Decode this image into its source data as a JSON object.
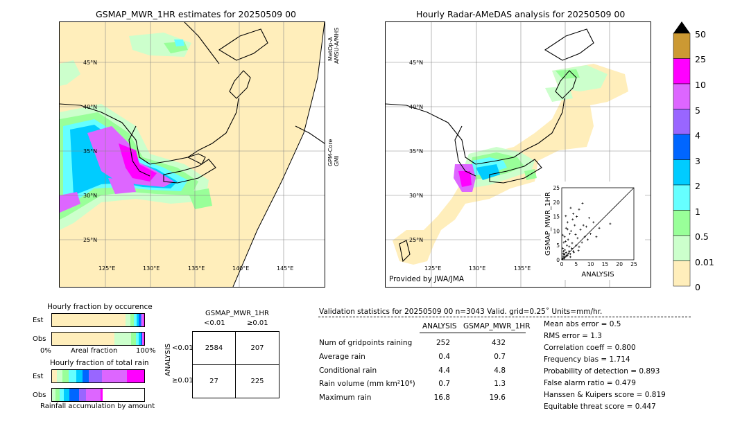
{
  "left_map": {
    "title": "GSMAP_MWR_1HR estimates for 20250509 00",
    "lat_labels": [
      "45°N",
      "40°N",
      "35°N",
      "30°N",
      "25°N"
    ],
    "lon_labels": [
      "125°E",
      "130°E",
      "135°E",
      "140°E",
      "145°E"
    ],
    "side_label_top": "MetOp-A\nAMSU-A/MHS",
    "side_label_top_l1": "MetOp-A",
    "side_label_top_l2": "AMSU-A/MHS",
    "side_label_bottom_l1": "GPM-Core",
    "side_label_bottom_l2": "GMI"
  },
  "right_map": {
    "title": "Hourly Radar-AMeDAS analysis for 20250509 00",
    "lat_labels": [
      "45°N",
      "40°N",
      "35°N",
      "30°N",
      "25°N"
    ],
    "lon_labels": [
      "125°E",
      "130°E",
      "135°E"
    ],
    "credit": "Provided by JWA/JMA"
  },
  "colorbar": {
    "labels": [
      "50",
      "25",
      "10",
      "5",
      "4",
      "3",
      "2",
      "1",
      "0.5",
      "0.01",
      "0"
    ],
    "colors": [
      "#cc9933",
      "#ff00ff",
      "#dd66ff",
      "#9966ff",
      "#0066ff",
      "#00ccff",
      "#66ffff",
      "#99ff99",
      "#ccffcc",
      "#ffeebb"
    ],
    "over_color": "#000000"
  },
  "chart_data": [
    {
      "type": "scatter",
      "xlabel": "ANALYSIS",
      "ylabel": "GSMAP_MWR_1HR",
      "xlim": [
        0,
        25
      ],
      "ylim": [
        0,
        25
      ],
      "ticks": [
        "0",
        "5",
        "10",
        "15",
        "20",
        "25"
      ],
      "points": [
        [
          0.3,
          0.5
        ],
        [
          0.5,
          1.2
        ],
        [
          0.8,
          0.4
        ],
        [
          1.0,
          2.0
        ],
        [
          1.2,
          1.0
        ],
        [
          0.6,
          3.0
        ],
        [
          1.5,
          2.5
        ],
        [
          2.0,
          1.5
        ],
        [
          0.4,
          4.0
        ],
        [
          2.5,
          3.0
        ],
        [
          1.8,
          5.0
        ],
        [
          3.0,
          2.0
        ],
        [
          0.7,
          6.0
        ],
        [
          3.5,
          4.0
        ],
        [
          2.2,
          7.0
        ],
        [
          4.0,
          3.0
        ],
        [
          1.0,
          8.0
        ],
        [
          5.0,
          5.0
        ],
        [
          2.8,
          9.0
        ],
        [
          6.0,
          4.5
        ],
        [
          3.2,
          10.0
        ],
        [
          5.5,
          7.5
        ],
        [
          1.5,
          11.0
        ],
        [
          7.0,
          6.0
        ],
        [
          4.5,
          12.0
        ],
        [
          8.0,
          8.0
        ],
        [
          2.0,
          13.0
        ],
        [
          6.5,
          10.5
        ],
        [
          3.8,
          14.0
        ],
        [
          9.0,
          7.0
        ],
        [
          5.2,
          15.0
        ],
        [
          7.5,
          12.0
        ],
        [
          4.0,
          16.0
        ],
        [
          10.0,
          9.0
        ],
        [
          6.0,
          17.5
        ],
        [
          8.5,
          11.5
        ],
        [
          12.0,
          8.0
        ],
        [
          9.5,
          14.5
        ],
        [
          11.0,
          13.0
        ],
        [
          7.2,
          19.6
        ],
        [
          13.0,
          11.0
        ],
        [
          16.8,
          12.5
        ],
        [
          0.2,
          0.2
        ],
        [
          0.9,
          0.8
        ],
        [
          1.6,
          1.3
        ],
        [
          2.4,
          2.1
        ],
        [
          0.5,
          2.2
        ],
        [
          1.1,
          3.4
        ],
        [
          3.0,
          1.0
        ],
        [
          4.2,
          2.6
        ],
        [
          0.8,
          1.8
        ],
        [
          2.6,
          4.6
        ],
        [
          1.3,
          6.4
        ],
        [
          3.6,
          5.8
        ],
        [
          0.4,
          8.6
        ],
        [
          5.8,
          3.2
        ],
        [
          2.0,
          10.6
        ],
        [
          4.8,
          8.8
        ],
        [
          1.4,
          15.2
        ],
        [
          3.1,
          18.0
        ]
      ],
      "series_name": ""
    },
    {
      "type": "bar",
      "title": "Hourly fraction by occurence",
      "categories": [
        "Est",
        "Obs"
      ],
      "xlabel_left": "0%",
      "xlabel_mid": "Areal fraction",
      "xlabel_right": "100%"
    },
    {
      "type": "bar",
      "title": "Hourly fraction of total rain",
      "categories": [
        "Est",
        "Obs"
      ],
      "xlabel": "Rainfall accumulation by amount"
    },
    {
      "type": "table",
      "title": "GSMAP_MWR_1HR",
      "col_headers": [
        "<0.01",
        "≥0.01"
      ],
      "row_axis_label": "ANALYSIS",
      "row_headers": [
        "<0.01",
        "≥0.01"
      ],
      "cells": [
        [
          "2584",
          "207"
        ],
        [
          "27",
          "225"
        ]
      ]
    }
  ],
  "validation": {
    "header": "Validation statistics for 20250509 00  n=3043 Valid. grid=0.25˚ Units=mm/hr.",
    "col_analysis": "ANALYSIS",
    "col_gsmap": "GSMAP_MWR_1HR",
    "rows": [
      {
        "label": "Num of gridpoints raining",
        "a": "252",
        "b": "432"
      },
      {
        "label": "Average rain",
        "a": "0.4",
        "b": "0.7"
      },
      {
        "label": "Conditional rain",
        "a": "4.4",
        "b": "4.8"
      },
      {
        "label": "Rain volume (mm km²10⁶)",
        "a": "0.7",
        "b": "1.3"
      },
      {
        "label": "Maximum rain",
        "a": "16.8",
        "b": "19.6"
      }
    ],
    "scores": [
      "Mean abs error =    0.5",
      "RMS error =    1.3",
      "Correlation coeff =  0.800",
      "Frequency bias =  1.714",
      "Probability of detection =  0.893",
      "False alarm ratio =  0.479",
      "Hanssen & Kuipers score =  0.819",
      "Equitable threat score =  0.447"
    ]
  }
}
